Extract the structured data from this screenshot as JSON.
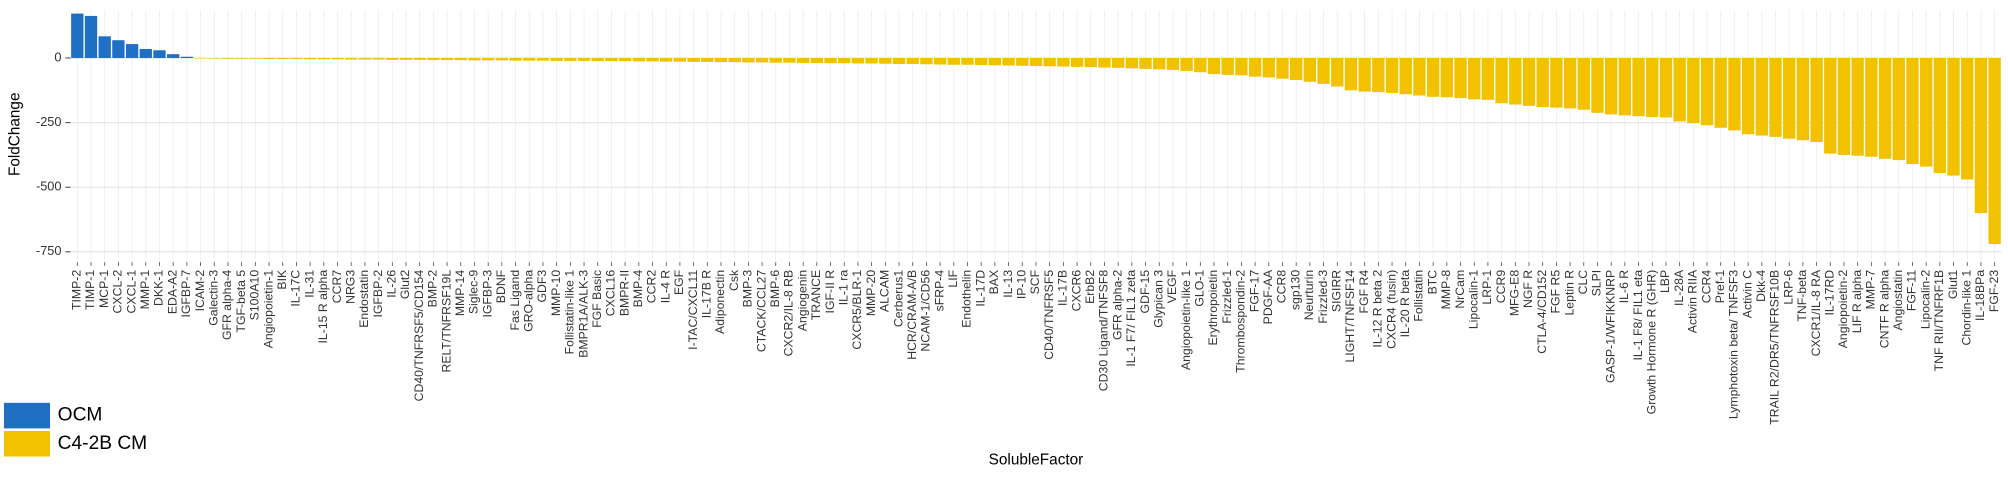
{
  "chart_data": {
    "type": "bar",
    "x_label": "SolubleFactor",
    "y_label": "FoldChange",
    "categories": [
      "TIMP-2",
      "TIMP-1",
      "MCP-1",
      "CXCL-2",
      "CXCL-1",
      "MMP-1",
      "DKK-1",
      "EDA-A2",
      "IGFBP-7",
      "ICAM-2",
      "Galectin-3",
      "GFR alpha-4",
      "TGF-beta 5",
      "S100A10",
      "Angiopoietin-1",
      "BIK",
      "IL-17C",
      "IL-31",
      "IL-15 R alpha",
      "CCR7",
      "NRG3",
      "Endostatin",
      "IGFBP-2",
      "IL-26",
      "Glut2",
      "CD40/TNFRSF5/CD154",
      "BMP-2",
      "RELT/TNFRSF19L",
      "MMP-14",
      "Siglec-9",
      "IGFBP-3",
      "BDNF",
      "Fas Ligand",
      "GRO-alpha",
      "GDF3",
      "MMP-10",
      "Follistatin-like 1",
      "BMPR1A/ALK-3",
      "FGF Basic",
      "CXCL16",
      "BMPR-II",
      "BMP-4",
      "CCR2",
      "IL-4 R",
      "EGF",
      "I-TAC/CXCL11",
      "IL-17B R",
      "Adiponectin",
      "Csk",
      "BMP-3",
      "CTACK/CCL27",
      "BMP-6",
      "CXCR2/IL-8 RB",
      "Angiogenin",
      "TRANCE",
      "IGF-II R",
      "IL-1 ra",
      "CXCR5/BLR-1",
      "MMP-20",
      "ALCAM",
      "Cerberus1",
      "HCR/CRAM-A/B",
      "NCAM-1/CD56",
      "sFRP-4",
      "LIF",
      "Endothelin",
      "IL-17D",
      "BAX",
      "IL-13",
      "IP-10",
      "SCF",
      "CD40/TNFRSF5",
      "IL-17B",
      "CXCR6",
      "ErbB2",
      "CD30 Ligand/TNFSF8",
      "GFR alpha-2",
      "IL-1 F7/ FIL1 zeta",
      "GDF-15",
      "Glypican 3",
      "VEGF",
      "Angiopoietin-like 1",
      "GLO-1",
      "Erythropoietin",
      "Frizzled-1",
      "Thrombospondin-2",
      "FGF-17",
      "PDGF-AA",
      "CCR8",
      "sgp130",
      "Neurturin",
      "Frizzled-3",
      "SIGIRR",
      "LIGHT/TNFSF14",
      "FGF R4",
      "IL-12 R beta 2",
      "CXCR4 (fusin)",
      "IL-20 R beta",
      "Follistatin",
      "BTC",
      "MMP-8",
      "NrCam",
      "Lipocalin-1",
      "LRP-1",
      "CCR9",
      "MFG-E8",
      "NGF R",
      "CTLA-4/CD152",
      "FGF R5",
      "Leptin R",
      "CLC",
      "SLPI",
      "GASP-1/WFIKKNRP",
      "IL-6 R",
      "IL-1 F8/ FIL1 eta",
      "Growth Hormone R (GHR)",
      "LBP",
      "IL-28A",
      "Activin RIIA",
      "CCR4",
      "Pref-1",
      "Lymphotoxin beta/ TNFSF3",
      "Activin C",
      "Dkk-4",
      "TRAIL R2/DR5/TNFRSF10B",
      "LRP-6",
      "TNF-beta",
      "CXCR1/IL-8 RA",
      "IL-17RD",
      "Angiopoietin-2",
      "LIF R alpha",
      "MMP-7",
      "CNTF R alpha",
      "Angiostatin",
      "FGF-11",
      "Lipocalin-2",
      "TNF RII/TNFRF1B",
      "Glut1",
      "Chordin-like 1",
      "IL-18BPa",
      "FGF-23"
    ],
    "series": [
      {
        "name": "OCM",
        "color": "#1f6fc5",
        "values": [
          172,
          163,
          84,
          69,
          54,
          35,
          30,
          15,
          5,
          null,
          null,
          null,
          null,
          null,
          null,
          null,
          null,
          null,
          null,
          null,
          null,
          null,
          null,
          null,
          null,
          null,
          null,
          null,
          null,
          null,
          null,
          null,
          null,
          null,
          null,
          null,
          null,
          null,
          null,
          null,
          null,
          null,
          null,
          null,
          null,
          null,
          null,
          null,
          null,
          null,
          null,
          null,
          null,
          null,
          null,
          null,
          null,
          null,
          null,
          null,
          null,
          null,
          null,
          null,
          null,
          null,
          null,
          null,
          null,
          null,
          null,
          null,
          null,
          null,
          null,
          null,
          null,
          null,
          null,
          null,
          null,
          null,
          null,
          null,
          null,
          null,
          null,
          null,
          null,
          null,
          null,
          null,
          null,
          null,
          null,
          null,
          null,
          null,
          null,
          null,
          null,
          null,
          null,
          null,
          null,
          null,
          null,
          null,
          null,
          null,
          null,
          null,
          null,
          null,
          null,
          null,
          null,
          null,
          null,
          null,
          null,
          null,
          null,
          null,
          null,
          null,
          null,
          null,
          null,
          null,
          null,
          null,
          null,
          null,
          null,
          null,
          null,
          null,
          null,
          null,
          null
        ]
      },
      {
        "name": "C4-2B CM",
        "color": "#f2c100",
        "values": [
          null,
          null,
          null,
          null,
          null,
          null,
          null,
          null,
          null,
          -2,
          -2,
          -3,
          -3,
          -3,
          -4,
          -4,
          -4,
          -5,
          -5,
          -5,
          -6,
          -6,
          -6,
          -7,
          -7,
          -7,
          -8,
          -8,
          -8,
          -9,
          -9,
          -9,
          -10,
          -10,
          -10,
          -11,
          -11,
          -11,
          -12,
          -12,
          -12,
          -13,
          -13,
          -14,
          -14,
          -15,
          -15,
          -16,
          -16,
          -17,
          -17,
          -18,
          -18,
          -19,
          -19,
          -20,
          -20,
          -21,
          -21,
          -22,
          -23,
          -23,
          -24,
          -25,
          -26,
          -26,
          -27,
          -28,
          -29,
          -30,
          -31,
          -32,
          -33,
          -34,
          -35,
          -37,
          -38,
          -40,
          -42,
          -44,
          -46,
          -50,
          -55,
          -62,
          -65,
          -67,
          -72,
          -75,
          -80,
          -85,
          -92,
          -100,
          -110,
          -125,
          -130,
          -132,
          -135,
          -140,
          -145,
          -150,
          -152,
          -155,
          -160,
          -162,
          -175,
          -180,
          -185,
          -190,
          -192,
          -195,
          -200,
          -212,
          -218,
          -222,
          -225,
          -228,
          -230,
          -245,
          -252,
          -260,
          -270,
          -280,
          -295,
          -300,
          -305,
          -312,
          -318,
          -325,
          -370,
          -375,
          -378,
          -382,
          -390,
          -395,
          -410,
          -420,
          -445,
          -455,
          -470,
          -600,
          -720
        ]
      }
    ],
    "ylim": [
      -790,
      185
    ],
    "yticks": [
      0,
      -250,
      -500,
      -750
    ],
    "grid": true,
    "legend": "bottom-left"
  }
}
